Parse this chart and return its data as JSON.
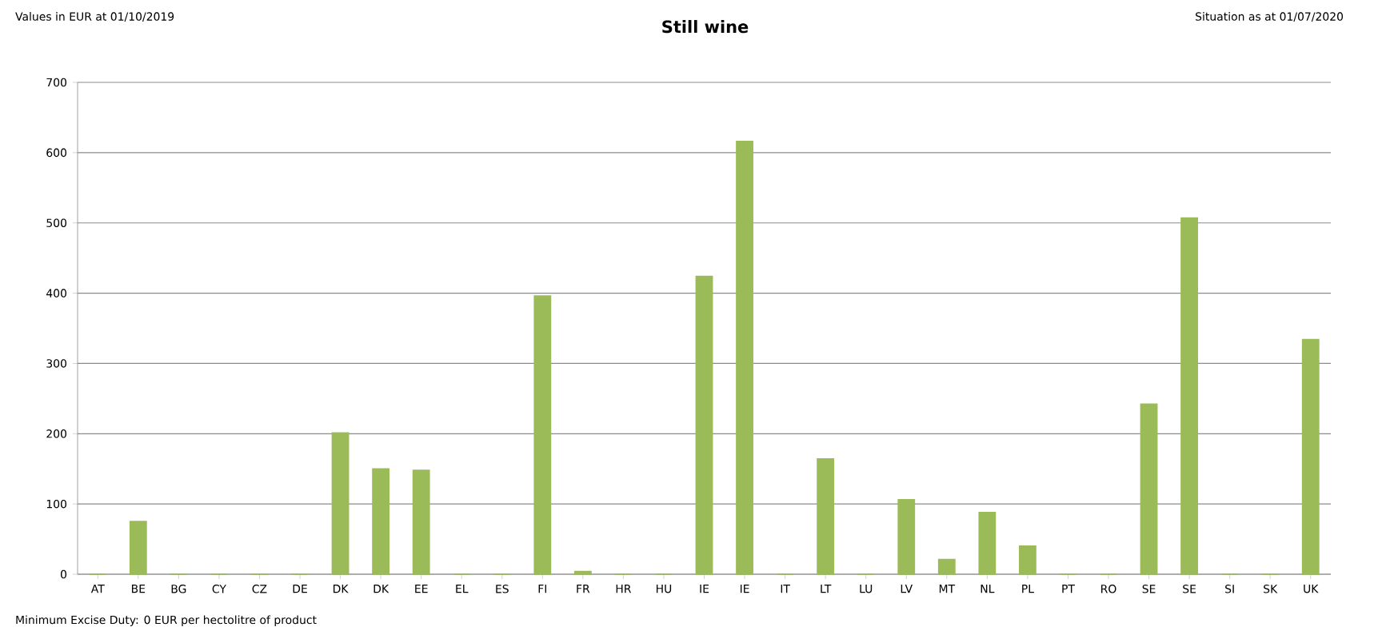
{
  "chart_data": {
    "type": "bar",
    "title": "Still wine",
    "annotations": [
      "Values in EUR at 01/10/2019",
      "Situation as at 01/07/2020",
      "Minimum Excise Duty: 0 EUR per hectolitre of product"
    ],
    "categories": [
      "AT",
      "BE",
      "BG",
      "CY",
      "CZ",
      "DE",
      "DK",
      "DK",
      "EE",
      "EL",
      "ES",
      "FI",
      "FR",
      "HR",
      "HU",
      "IE",
      "IE",
      "IT",
      "LT",
      "LU",
      "LV",
      "MT",
      "NL",
      "PL",
      "PT",
      "RO",
      "SE",
      "SE",
      "SI",
      "SK",
      "UK"
    ],
    "values": [
      0,
      75,
      0,
      0,
      0,
      0,
      201,
      150,
      148,
      0,
      0,
      396,
      4,
      0,
      0,
      424,
      616,
      0,
      164,
      0,
      106,
      21,
      88,
      40,
      0,
      0,
      242,
      507,
      0,
      0,
      334
    ],
    "color": "#9bbb59",
    "ylim": [
      0,
      700
    ],
    "yticks": [
      0,
      100,
      200,
      300,
      400,
      500,
      600,
      700
    ],
    "grid": "y"
  }
}
